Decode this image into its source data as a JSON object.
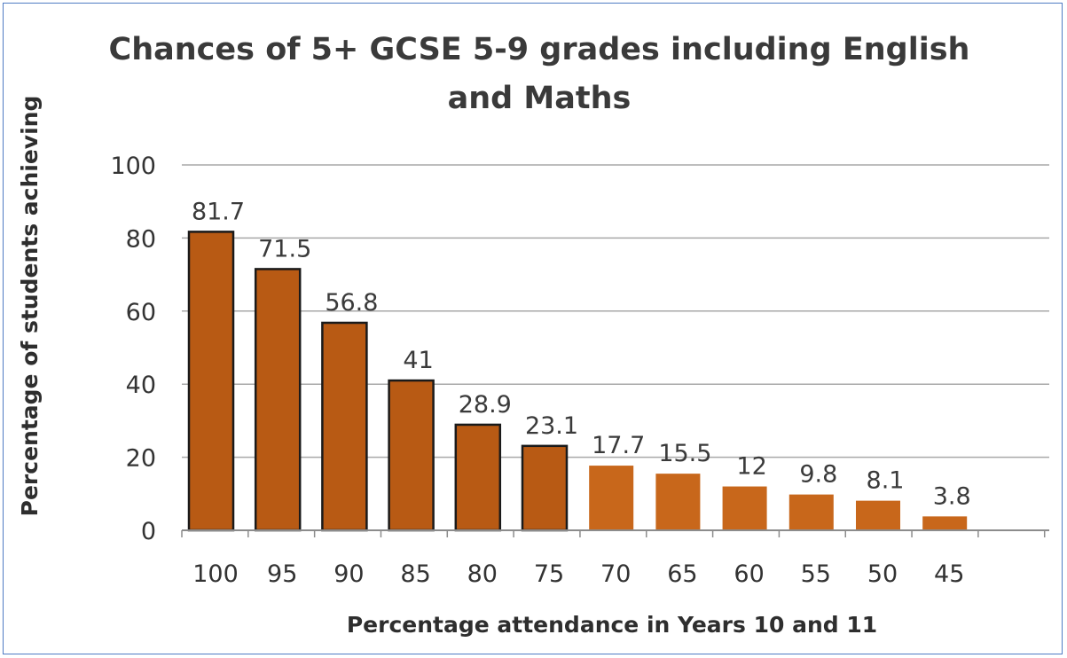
{
  "chart_data": {
    "type": "bar",
    "title": "Chances of 5+ GCSE 5-9 grades including English and Maths",
    "title_lines": [
      "Chances of 5+ GCSE 5-9 grades including  English",
      "and Maths"
    ],
    "xlabel": "Percentage attendance in Years 10 and 11",
    "ylabel": "Percentage of students achieving",
    "categories": [
      "100",
      "95",
      "90",
      "85",
      "80",
      "75",
      "70",
      "65",
      "60",
      "55",
      "50",
      "45"
    ],
    "values": [
      81.7,
      71.5,
      56.8,
      41,
      28.9,
      23.1,
      17.7,
      15.5,
      12,
      9.8,
      8.1,
      3.8
    ],
    "data_labels": [
      "81.7",
      "71.5",
      "56.8",
      "41",
      "28.9",
      "23.1",
      "17.7",
      "15.5",
      "12",
      "9.8",
      "8.1",
      "3.8"
    ],
    "ylim": [
      0,
      100
    ],
    "yticks": [
      "0",
      "20",
      "40",
      "60",
      "80",
      "100"
    ],
    "grid": true,
    "legend": "none",
    "colors": {
      "bar_fill": "#b85a14",
      "bar_fill_light": "#c8671b",
      "bar_outline": "#1a1a1a",
      "grid": "#a8a8a8",
      "axis": "#8c8c8c",
      "border": "#4f7cc4"
    }
  }
}
